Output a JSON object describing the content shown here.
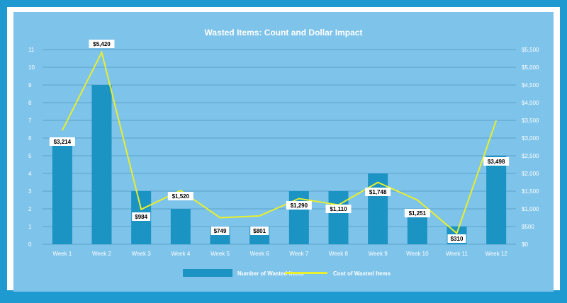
{
  "chart_data": {
    "type": "bar",
    "title": "Wasted Items: Count and Dollar Impact",
    "categories": [
      "Week 1",
      "Week 2",
      "Week 3",
      "Week 4",
      "Week 5",
      "Week 6",
      "Week 7",
      "Week 8",
      "Week 9",
      "Week 10",
      "Week 11",
      "Week 12"
    ],
    "series": [
      {
        "name": "Number of Wasted Items",
        "type": "bar",
        "axis": "left",
        "color": "#1b93c3",
        "values": [
          6,
          9,
          3,
          2,
          1,
          1,
          3,
          3,
          4,
          2,
          1,
          5
        ]
      },
      {
        "name": "Cost of Wasted Items",
        "type": "line",
        "axis": "right",
        "color": "#e8ef2c",
        "values": [
          3214,
          5420,
          984,
          1520,
          749,
          801,
          1290,
          1110,
          1748,
          1251,
          310,
          3498
        ],
        "labels": [
          "$3,214",
          "$5,420",
          "$984",
          "$1,520",
          "$749",
          "$801",
          "$1,290",
          "$1,110",
          "$1,748",
          "$1,251",
          "$310",
          "$3,498"
        ]
      }
    ],
    "y_left": {
      "min": 0,
      "max": 11,
      "ticks": [
        "0",
        "1",
        "2",
        "3",
        "4",
        "5",
        "6",
        "7",
        "8",
        "9",
        "10",
        "11"
      ]
    },
    "y_right": {
      "min": 0,
      "max": 5500,
      "ticks": [
        "$0",
        "$500",
        "$1,000",
        "$1,500",
        "$2,000",
        "$2,500",
        "$3,000",
        "$3,500",
        "$4,000",
        "$4,500",
        "$5,000",
        "$5,500"
      ]
    },
    "grid": true,
    "legend": "bottom-center"
  }
}
